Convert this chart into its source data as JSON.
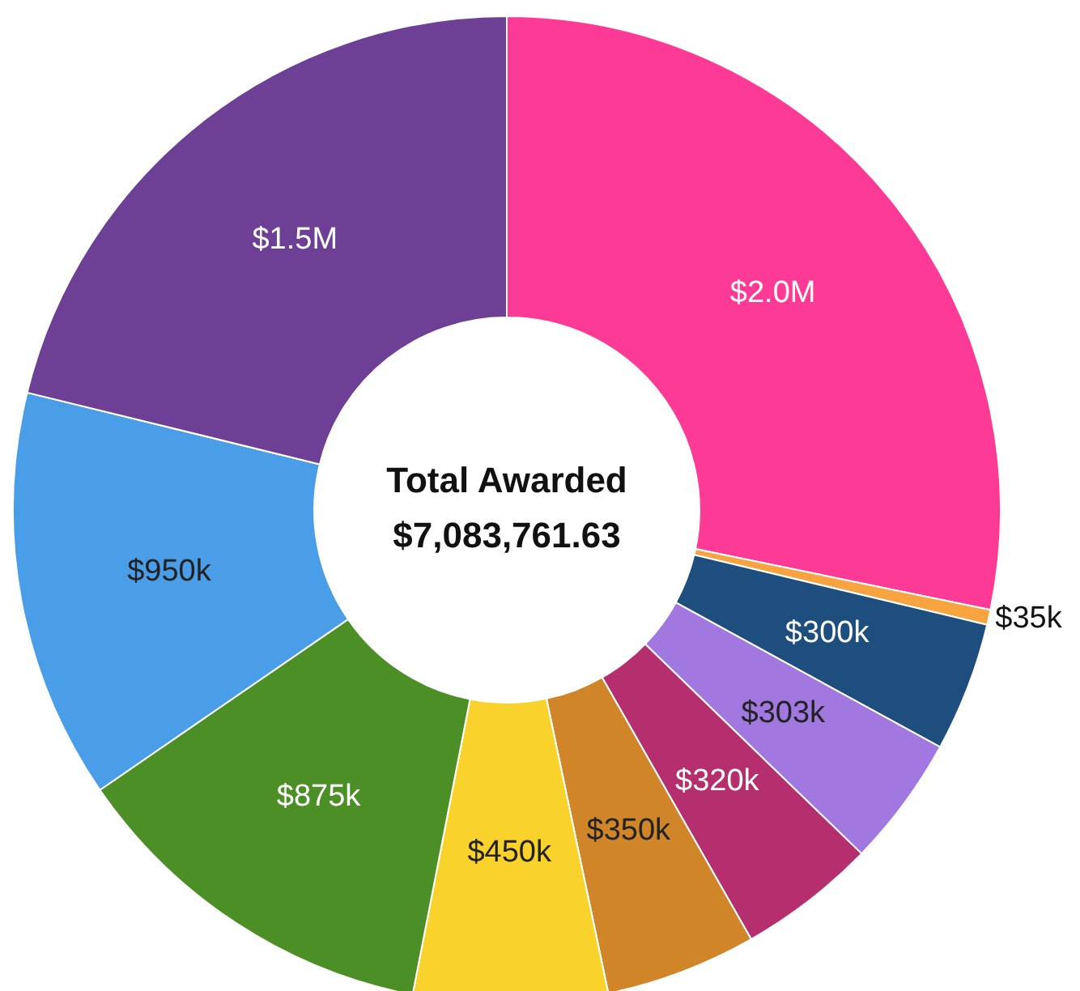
{
  "chart_data": {
    "type": "donut",
    "title": "Total Awarded",
    "subtitle": "$7,083,761.63",
    "categories": [
      null,
      null,
      null,
      null,
      null,
      null,
      null,
      null,
      null,
      null
    ],
    "values": [
      2000000,
      35000,
      300000,
      303000,
      320000,
      350000,
      450000,
      875000,
      950000,
      1500000
    ],
    "value_labels": [
      "$2.0M",
      "$35k",
      "$300k",
      "$303k",
      "$320k",
      "$350k",
      "$450k",
      "$875k",
      "$950k",
      "$1.5M"
    ],
    "colors": [
      "#fd3a96",
      "#f7a440",
      "#1d4e7d",
      "#a178e0",
      "#b52f6e",
      "#d08628",
      "#f9d22b",
      "#4d8f27",
      "#4a9ee8",
      "#6d4096"
    ],
    "legend": false
  }
}
